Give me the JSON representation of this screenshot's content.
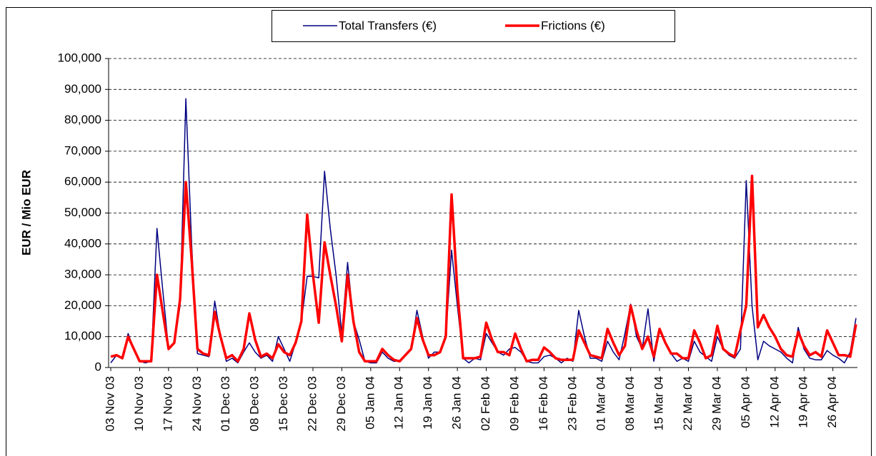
{
  "chart_data": {
    "type": "line",
    "ylabel": "EUR / Mio EUR",
    "x": [
      "2003-11-03",
      "2003-11-04",
      "2003-11-05",
      "2003-11-06",
      "2003-11-07",
      "2003-11-10",
      "2003-11-11",
      "2003-11-12",
      "2003-11-13",
      "2003-11-14",
      "2003-11-17",
      "2003-11-18",
      "2003-11-19",
      "2003-11-20",
      "2003-11-21",
      "2003-11-24",
      "2003-11-25",
      "2003-11-26",
      "2003-11-27",
      "2003-11-28",
      "2003-12-01",
      "2003-12-02",
      "2003-12-03",
      "2003-12-04",
      "2003-12-05",
      "2003-12-08",
      "2003-12-09",
      "2003-12-10",
      "2003-12-11",
      "2003-12-12",
      "2003-12-15",
      "2003-12-16",
      "2003-12-17",
      "2003-12-18",
      "2003-12-19",
      "2003-12-22",
      "2003-12-23",
      "2003-12-24",
      "2003-12-25",
      "2003-12-26",
      "2003-12-29",
      "2003-12-30",
      "2003-12-31",
      "2004-01-01",
      "2004-01-02",
      "2004-01-05",
      "2004-01-06",
      "2004-01-07",
      "2004-01-08",
      "2004-01-09",
      "2004-01-12",
      "2004-01-13",
      "2004-01-14",
      "2004-01-15",
      "2004-01-16",
      "2004-01-19",
      "2004-01-20",
      "2004-01-21",
      "2004-01-22",
      "2004-01-23",
      "2004-01-26",
      "2004-01-27",
      "2004-01-28",
      "2004-01-29",
      "2004-01-30",
      "2004-02-02",
      "2004-02-03",
      "2004-02-04",
      "2004-02-05",
      "2004-02-06",
      "2004-02-09",
      "2004-02-10",
      "2004-02-11",
      "2004-02-12",
      "2004-02-13",
      "2004-02-16",
      "2004-02-17",
      "2004-02-18",
      "2004-02-19",
      "2004-02-20",
      "2004-02-23",
      "2004-02-24",
      "2004-02-25",
      "2004-02-26",
      "2004-02-27",
      "2004-03-01",
      "2004-03-02",
      "2004-03-03",
      "2004-03-04",
      "2004-03-05",
      "2004-03-08",
      "2004-03-09",
      "2004-03-10",
      "2004-03-11",
      "2004-03-12",
      "2004-03-15",
      "2004-03-16",
      "2004-03-17",
      "2004-03-18",
      "2004-03-19",
      "2004-03-22",
      "2004-03-23",
      "2004-03-24",
      "2004-03-25",
      "2004-03-26",
      "2004-03-29",
      "2004-03-30",
      "2004-03-31",
      "2004-04-01",
      "2004-04-02",
      "2004-04-05",
      "2004-04-06",
      "2004-04-07",
      "2004-04-08",
      "2004-04-09",
      "2004-04-12",
      "2004-04-13",
      "2004-04-14",
      "2004-04-15",
      "2004-04-16",
      "2004-04-19",
      "2004-04-20",
      "2004-04-21",
      "2004-04-22",
      "2004-04-23",
      "2004-04-26",
      "2004-04-27",
      "2004-04-28",
      "2004-04-29",
      "2004-04-30"
    ],
    "series": [
      {
        "name": "Total Transfers (€)",
        "color": "#000080",
        "width": 1.5,
        "values": [
          1500,
          4000,
          3000,
          11000,
          6000,
          2000,
          1500,
          2000,
          45000,
          25000,
          6000,
          8000,
          20000,
          87000,
          40000,
          4500,
          4000,
          3500,
          21500,
          10000,
          2000,
          3000,
          1500,
          5000,
          8000,
          5000,
          3000,
          4000,
          2000,
          10000,
          6000,
          2000,
          8000,
          15000,
          29500,
          29500,
          29000,
          63500,
          45000,
          30000,
          11000,
          34000,
          15000,
          9000,
          2000,
          1500,
          1500,
          5000,
          3000,
          2000,
          2000,
          4000,
          6000,
          18500,
          10000,
          3000,
          5000,
          5000,
          10000,
          38000,
          20000,
          3000,
          1500,
          3000,
          2500,
          11000,
          8000,
          5000,
          4000,
          6000,
          6500,
          5000,
          2000,
          1500,
          1500,
          3500,
          4000,
          3000,
          1500,
          3000,
          2000,
          18500,
          10000,
          3000,
          3000,
          2000,
          8500,
          5000,
          2500,
          11000,
          20500,
          10000,
          6000,
          19000,
          2000,
          12000,
          8000,
          4500,
          2000,
          3000,
          2000,
          8500,
          5000,
          3500,
          2000,
          10000,
          6000,
          4000,
          3000,
          6000,
          60500,
          20000,
          2500,
          8500,
          7000,
          6000,
          5000,
          3000,
          1500,
          13000,
          6000,
          3000,
          2500,
          2500,
          5500,
          4000,
          3000,
          1500,
          5000,
          16000
        ]
      },
      {
        "name": "Frictions (€)",
        "color": "#ff0000",
        "width": 3.5,
        "values": [
          3500,
          4000,
          3000,
          10000,
          6000,
          2000,
          2000,
          2000,
          30000,
          18000,
          6000,
          8000,
          22000,
          60000,
          35000,
          6000,
          4500,
          4000,
          18000,
          10000,
          3000,
          4000,
          2000,
          6000,
          17500,
          9000,
          3500,
          4500,
          3000,
          7500,
          5000,
          4000,
          8000,
          15000,
          49500,
          30000,
          14500,
          40500,
          30000,
          20000,
          8500,
          30000,
          15000,
          5000,
          2000,
          2000,
          2000,
          6000,
          4000,
          2500,
          2000,
          4000,
          6000,
          16000,
          9000,
          4000,
          4000,
          5000,
          10000,
          56000,
          25000,
          3000,
          3000,
          3000,
          3500,
          14500,
          9000,
          5000,
          5000,
          4000,
          11000,
          6000,
          2000,
          2500,
          2500,
          6500,
          5000,
          3000,
          2500,
          2500,
          2500,
          12000,
          8000,
          4000,
          3500,
          3000,
          12500,
          8000,
          4000,
          7000,
          20000,
          12000,
          6000,
          10000,
          3500,
          12500,
          8000,
          4500,
          4500,
          3000,
          3000,
          12000,
          8000,
          3000,
          4000,
          13500,
          6000,
          4500,
          3500,
          12000,
          20000,
          62000,
          13000,
          17000,
          13000,
          10000,
          6000,
          4000,
          3500,
          11500,
          7000,
          4000,
          5000,
          3500,
          12000,
          8000,
          4000,
          4000,
          3500,
          14000
        ]
      }
    ],
    "ylim": [
      0,
      100000
    ],
    "yticks": [
      {
        "value": 0,
        "label": "0"
      },
      {
        "value": 10000,
        "label": "10,000"
      },
      {
        "value": 20000,
        "label": "20,000"
      },
      {
        "value": 30000,
        "label": "30,000"
      },
      {
        "value": 40000,
        "label": "40,000"
      },
      {
        "value": 50000,
        "label": "50,000"
      },
      {
        "value": 60000,
        "label": "60,000"
      },
      {
        "value": 70000,
        "label": "70,000"
      },
      {
        "value": 80000,
        "label": "80,000"
      },
      {
        "value": 90000,
        "label": "90,000"
      },
      {
        "value": 100000,
        "label": "100,000"
      }
    ],
    "xticks": [
      {
        "value": "2003-11-03",
        "label": "03 Nov 03"
      },
      {
        "value": "2003-11-10",
        "label": "10 Nov 03"
      },
      {
        "value": "2003-11-17",
        "label": "17 Nov 03"
      },
      {
        "value": "2003-11-24",
        "label": "24 Nov 03"
      },
      {
        "value": "2003-12-01",
        "label": "01 Dec 03"
      },
      {
        "value": "2003-12-08",
        "label": "08 Dec 03"
      },
      {
        "value": "2003-12-15",
        "label": "15 Dec 03"
      },
      {
        "value": "2003-12-22",
        "label": "22 Dec 03"
      },
      {
        "value": "2003-12-29",
        "label": "29 Dec 03"
      },
      {
        "value": "2004-01-05",
        "label": "05 Jan 04"
      },
      {
        "value": "2004-01-12",
        "label": "12 Jan 04"
      },
      {
        "value": "2004-01-19",
        "label": "19 Jan 04"
      },
      {
        "value": "2004-01-26",
        "label": "26 Jan 04"
      },
      {
        "value": "2004-02-02",
        "label": "02 Feb 04"
      },
      {
        "value": "2004-02-09",
        "label": "09 Feb 04"
      },
      {
        "value": "2004-02-16",
        "label": "16 Feb 04"
      },
      {
        "value": "2004-02-23",
        "label": "23 Feb 04"
      },
      {
        "value": "2004-03-01",
        "label": "01 Mar 04"
      },
      {
        "value": "2004-03-08",
        "label": "08 Mar 04"
      },
      {
        "value": "2004-03-15",
        "label": "15 Mar 04"
      },
      {
        "value": "2004-03-22",
        "label": "22 Mar 04"
      },
      {
        "value": "2004-03-29",
        "label": "29 Mar 04"
      },
      {
        "value": "2004-04-05",
        "label": "05 Apr 04"
      },
      {
        "value": "2004-04-12",
        "label": "12 Apr 04"
      },
      {
        "value": "2004-04-19",
        "label": "19 Apr 04"
      },
      {
        "value": "2004-04-26",
        "label": "26 Apr 04"
      }
    ],
    "grid": true,
    "legend": "top"
  }
}
